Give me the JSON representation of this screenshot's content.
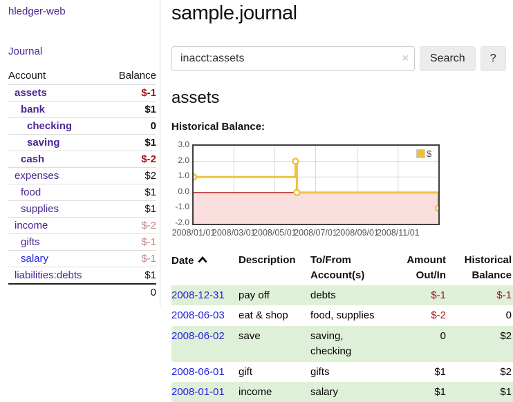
{
  "app": {
    "title": "hledger-web"
  },
  "sidebar": {
    "journal_link": "Journal",
    "header": {
      "account": "Account",
      "balance": "Balance"
    },
    "accounts": [
      {
        "name": "assets",
        "indent": 1,
        "bold": true,
        "color": "purple",
        "balance": "$-1",
        "balance_style": "negs"
      },
      {
        "name": "bank",
        "indent": 2,
        "bold": true,
        "color": "purple",
        "balance": "$1",
        "balance_style": "pos-bold"
      },
      {
        "name": "checking",
        "indent": 3,
        "bold": true,
        "color": "purple",
        "balance": "0",
        "balance_style": "pos-bold"
      },
      {
        "name": "saving",
        "indent": 3,
        "bold": true,
        "color": "purple",
        "balance": "$1",
        "balance_style": "pos-bold"
      },
      {
        "name": "cash",
        "indent": 2,
        "bold": true,
        "color": "purple",
        "balance": "$-2",
        "balance_style": "negs"
      },
      {
        "name": "expenses",
        "indent": 1,
        "bold": false,
        "color": "purple",
        "balance": "$2",
        "balance_style": "pos"
      },
      {
        "name": "food",
        "indent": 2,
        "bold": false,
        "color": "purple",
        "balance": "$1",
        "balance_style": "pos"
      },
      {
        "name": "supplies",
        "indent": 2,
        "bold": false,
        "color": "purple",
        "balance": "$1",
        "balance_style": "pos"
      },
      {
        "name": "income",
        "indent": 1,
        "bold": false,
        "color": "purple",
        "balance": "$-2",
        "balance_style": "negl"
      },
      {
        "name": "gifts",
        "indent": 2,
        "bold": false,
        "color": "purple",
        "balance": "$-1",
        "balance_style": "negl"
      },
      {
        "name": "salary",
        "indent": 2,
        "bold": false,
        "color": "blue",
        "balance": "$-1",
        "balance_style": "negl"
      },
      {
        "name": "liabilities:debts",
        "indent": 1,
        "bold": false,
        "color": "purple",
        "balance": "$1",
        "balance_style": "pos"
      }
    ],
    "total": "0"
  },
  "header": {
    "title": "sample.journal"
  },
  "search": {
    "value": "inacct:assets",
    "clear_icon": "×",
    "button": "Search",
    "help_button": "?"
  },
  "account_page": {
    "heading": "assets",
    "chart_label": "Historical Balance:"
  },
  "chart_data": {
    "type": "line",
    "title": "Historical Balance:",
    "steps": true,
    "x_range": [
      "2008-01-01",
      "2008-12-31"
    ],
    "ylim": [
      -2,
      3
    ],
    "y_ticks": [
      "3.0",
      "2.0",
      "1.0",
      "0.0",
      "-1.0",
      "-2.0"
    ],
    "y_tick_values": [
      3,
      2,
      1,
      0,
      -1,
      -2
    ],
    "x_ticks": [
      "2008/01/01",
      "2008/03/01",
      "2008/05/01",
      "2008/07/01",
      "2008/09/01",
      "2008/11/01"
    ],
    "grid": true,
    "legend": {
      "label": "$",
      "position": "top-right"
    },
    "series": [
      {
        "name": "$",
        "color": "#edc240",
        "points": [
          [
            "2008-01-01",
            1
          ],
          [
            "2008-06-01",
            2
          ],
          [
            "2008-06-03",
            0
          ],
          [
            "2008-12-31",
            -1
          ]
        ]
      }
    ],
    "negative_region_fill": "#fbdede",
    "zero_line_color": "#aa0000",
    "grid_color": "#d8d8d8"
  },
  "register": {
    "headers": {
      "date": "Date",
      "description": "Description",
      "accounts": "To/From Account(s)",
      "amount": "Amount Out/In",
      "balance": "Historical Balance"
    },
    "rows": [
      {
        "date": "2008-12-31",
        "description": "pay off",
        "accounts": "debts",
        "amount": "$-1",
        "amount_neg": true,
        "balance": "$-1",
        "balance_neg": true,
        "shade": true
      },
      {
        "date": "2008-06-03",
        "description": "eat & shop",
        "accounts": "food, supplies",
        "amount": "$-2",
        "amount_neg": true,
        "balance": "0",
        "balance_neg": false,
        "shade": false
      },
      {
        "date": "2008-06-02",
        "description": "save",
        "accounts": "saving, checking",
        "amount": "0",
        "amount_neg": false,
        "balance": "$2",
        "balance_neg": false,
        "shade": true
      },
      {
        "date": "2008-06-01",
        "description": "gift",
        "accounts": "gifts",
        "amount": "$1",
        "amount_neg": false,
        "balance": "$2",
        "balance_neg": false,
        "shade": false
      },
      {
        "date": "2008-01-01",
        "description": "income",
        "accounts": "salary",
        "amount": "$1",
        "amount_neg": false,
        "balance": "$1",
        "balance_neg": false,
        "shade": true
      }
    ]
  },
  "colors": {
    "link_purple": "#4c2694",
    "link_blue": "#2222dd",
    "negative_strong": "#9d1515",
    "negative_light": "#c08080",
    "row_shade_green": "#dff0d8",
    "series_gold": "#edc240",
    "axis_text": "#545454"
  }
}
